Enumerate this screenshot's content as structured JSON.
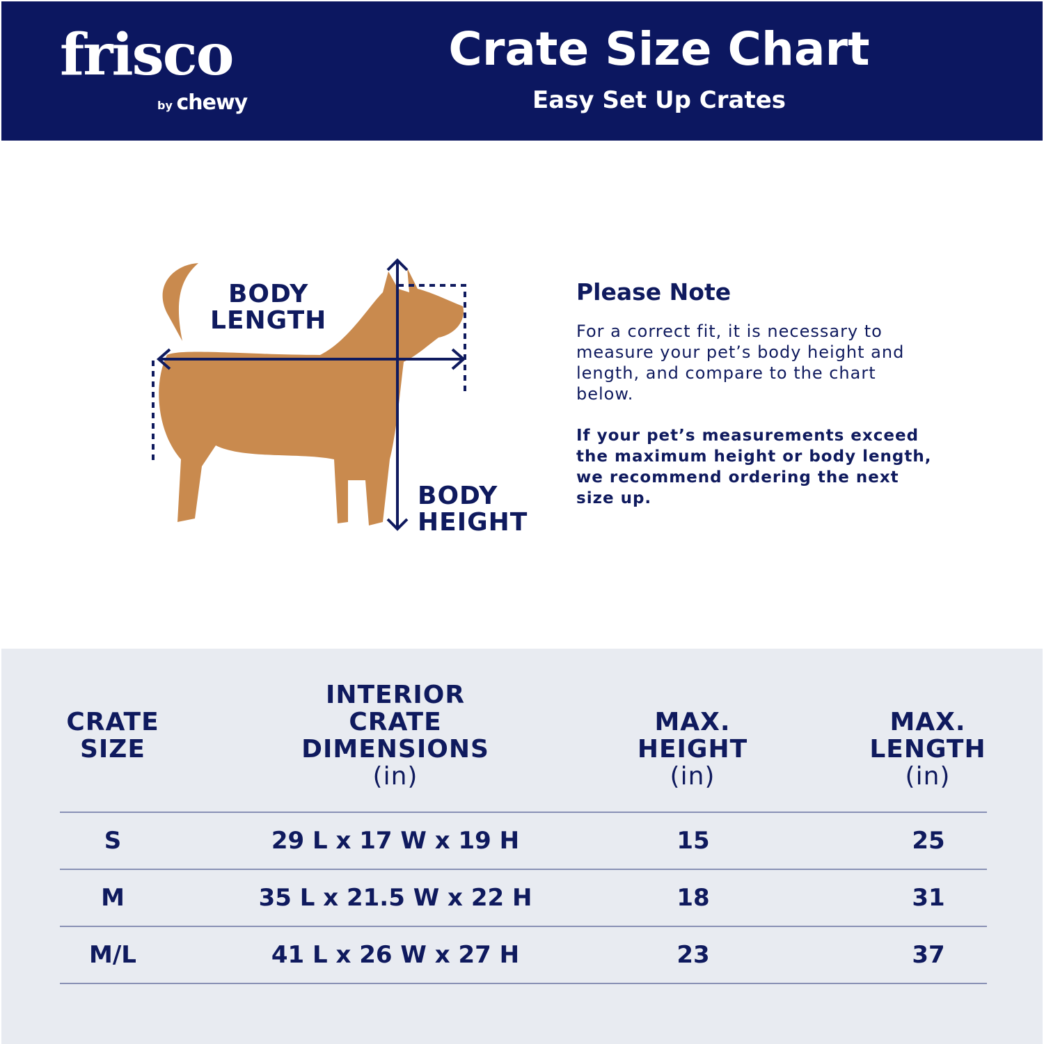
{
  "brand": {
    "logo": "frisco",
    "byline": "by",
    "byline_brand": "chewy"
  },
  "header": {
    "title": "Crate Size Chart",
    "subtitle": "Easy Set Up Crates"
  },
  "diagram": {
    "body_length": [
      "BODY",
      "LENGTH"
    ],
    "body_height": [
      "BODY",
      "HEIGHT"
    ]
  },
  "note": {
    "heading": "Please Note",
    "text": "For a correct fit, it is necessary to measure your pet’s body height and length, and compare to the chart below.",
    "bold_text": "If your pet’s measurements exceed the maximum height or body length, we recommend ordering the next size up."
  },
  "table": {
    "headers": [
      {
        "lines": [
          "CRATE",
          "SIZE"
        ],
        "unit": ""
      },
      {
        "lines": [
          "INTERIOR",
          "CRATE",
          "DIMENSIONS"
        ],
        "unit": "(in)"
      },
      {
        "lines": [
          "MAX.",
          "HEIGHT"
        ],
        "unit": "(in)"
      },
      {
        "lines": [
          "MAX.",
          "LENGTH"
        ],
        "unit": "(in)"
      }
    ],
    "rows": [
      [
        "S",
        "29 L x 17 W x 19 H",
        "15",
        "25"
      ],
      [
        "M",
        "35 L x 21.5 W x 22 H",
        "18",
        "31"
      ],
      [
        "M/L",
        "41 L x 26 W x 27 H",
        "23",
        "37"
      ]
    ]
  },
  "colors": {
    "navy": "#0c1760",
    "table_bg": "#e8ebf1",
    "dog": "#c98a4e"
  }
}
